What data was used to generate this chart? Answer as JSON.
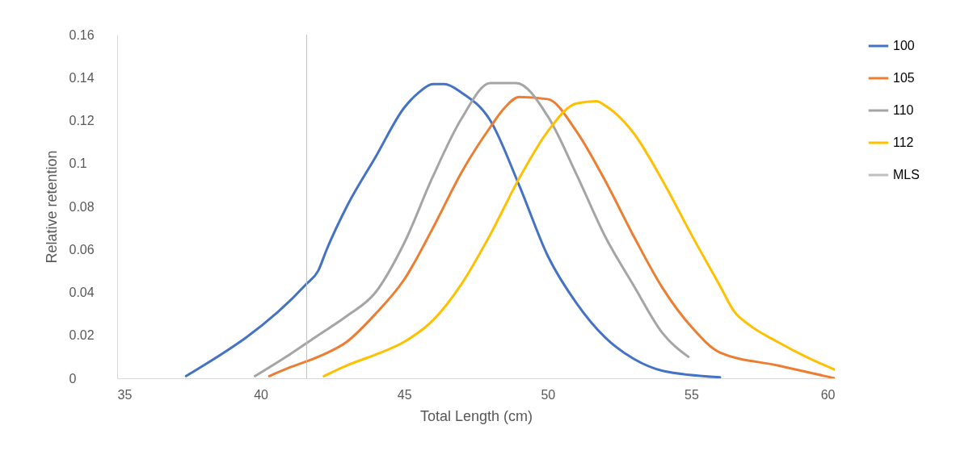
{
  "chart_data": {
    "type": "line",
    "xlabel": "Total Length (cm)",
    "ylabel": "Relative retention",
    "xlim": [
      35,
      60
    ],
    "xticks": [
      35,
      40,
      45,
      50,
      55,
      60
    ],
    "ylim": [
      0,
      0.16
    ],
    "yticks": [
      0,
      0.02,
      0.04,
      0.06,
      0.08,
      0.1,
      0.12,
      0.14,
      0.16
    ],
    "grid": false,
    "legend": "right",
    "marker": "none",
    "line_style": "solid",
    "series": [
      {
        "name": "100",
        "color": "#4472c4",
        "x": [
          37.4,
          41.6,
          42,
          42.3,
          43,
          44,
          45,
          45.5,
          46,
          46.4,
          47,
          48,
          49,
          50,
          51,
          52,
          53,
          54,
          56
        ],
        "values": [
          0.001,
          0.044,
          0.05,
          0.06,
          0.08,
          0.103,
          0.126,
          0.133,
          0.137,
          0.137,
          0.133,
          0.12,
          0.09,
          0.057,
          0.035,
          0.019,
          0.009,
          0.0035,
          0.0005
        ]
      },
      {
        "name": "105",
        "color": "#ed7d31",
        "x": [
          40.3,
          41,
          42,
          43,
          44,
          45,
          46,
          47,
          48,
          48.5,
          49,
          50,
          51,
          52,
          53,
          54,
          55,
          56,
          58,
          60
        ],
        "values": [
          0.001,
          0.005,
          0.01,
          0.017,
          0.03,
          0.046,
          0.07,
          0.096,
          0.117,
          0.126,
          0.131,
          0.13,
          0.115,
          0.092,
          0.066,
          0.042,
          0.024,
          0.012,
          0.006,
          0
        ]
      },
      {
        "name": "110",
        "color": "#a5a5a5",
        "x": [
          39.8,
          41,
          42,
          43,
          44,
          45,
          46,
          47,
          48,
          48.9,
          50,
          51,
          52,
          53,
          54,
          54.9
        ],
        "values": [
          0.001,
          0.011,
          0.02,
          0.029,
          0.04,
          0.063,
          0.094,
          0.121,
          0.1375,
          0.1375,
          0.122,
          0.095,
          0.066,
          0.043,
          0.021,
          0.01
        ]
      },
      {
        "name": "112",
        "color": "#ffc000",
        "x": [
          42.2,
          43,
          44,
          45,
          46,
          47,
          48,
          49,
          50,
          51,
          51.7,
          52,
          53,
          54,
          55,
          56,
          56.5,
          57,
          58,
          59,
          60
        ],
        "values": [
          0.001,
          0.006,
          0.011,
          0.017,
          0.027,
          0.044,
          0.067,
          0.093,
          0.115,
          0.128,
          0.129,
          0.127,
          0.114,
          0.092,
          0.067,
          0.043,
          0.031,
          0.025,
          0.017,
          0.01,
          0.004
        ]
      },
      {
        "name": "MLS",
        "color": "#bfbfbf",
        "x": [
          41.6,
          41.6
        ],
        "values": [
          0,
          0.16
        ]
      }
    ]
  }
}
